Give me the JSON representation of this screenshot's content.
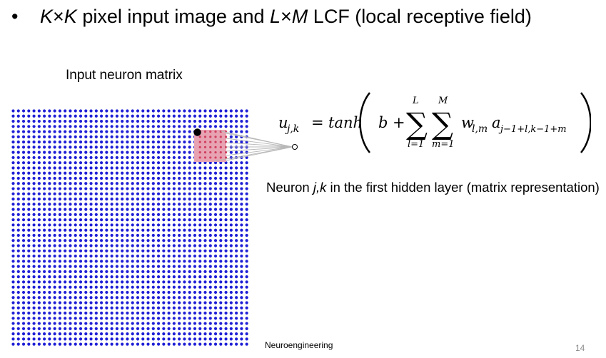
{
  "slide": {
    "title_k1": "K",
    "title_times1": "×",
    "title_k2": "K",
    "title_mid": " pixel input image and ",
    "title_l": "L",
    "title_times2": "×",
    "title_m": "M",
    "title_end": " LCF (local receptive field)",
    "bullet": "•"
  },
  "matrix": {
    "label": "Input neuron matrix",
    "dot_color": "#1f1fd6",
    "highlight_color": "#e8a3b3",
    "active_color": "#000000",
    "rows": 46,
    "cols": 46,
    "lrf_rows": 6,
    "lrf_cols": 6
  },
  "equation": {
    "lhs_var": "u",
    "lhs_sub": "j,k",
    "equals": "=",
    "func": "tanh",
    "bias": "b",
    "plus": "+",
    "sum1_upper": "L",
    "sum1_lower": "l=1",
    "sum2_upper": "M",
    "sum2_lower": "m=1",
    "weight": "w",
    "weight_sub": "l,m",
    "activation": "a",
    "activation_sub": "j−1+l,k−1+m"
  },
  "caption": {
    "prefix": "Neuron ",
    "italic": "j,k",
    "suffix": " in the first hidden layer (matrix representation)"
  },
  "footer": {
    "text": "Neuroengineering",
    "page": "14"
  }
}
